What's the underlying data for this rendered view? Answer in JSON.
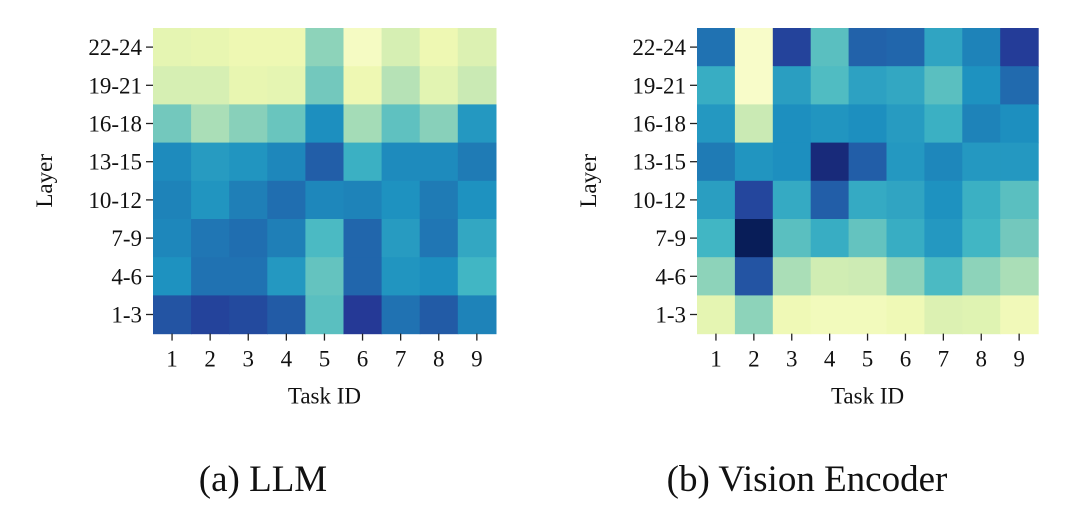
{
  "palette": [
    "#ffffd9",
    "#edf8b1",
    "#c7e9b4",
    "#7fcdbb",
    "#41b6c4",
    "#1d91c0",
    "#225ea8",
    "#253494",
    "#081d58"
  ],
  "chart_data": [
    {
      "type": "heatmap",
      "caption": "(a) LLM",
      "xlabel": "Task ID",
      "ylabel": "Layer",
      "x_categories": [
        "1",
        "2",
        "3",
        "4",
        "5",
        "6",
        "7",
        "8",
        "9"
      ],
      "y_categories": [
        "22-24",
        "19-21",
        "16-18",
        "13-15",
        "10-12",
        "7-9",
        "4-6",
        "1-3"
      ],
      "value_range": [
        0,
        1
      ],
      "values": [
        [
          0.15,
          0.14,
          0.12,
          0.12,
          0.35,
          0.07,
          0.2,
          0.12,
          0.18
        ],
        [
          0.2,
          0.2,
          0.14,
          0.15,
          0.4,
          0.12,
          0.28,
          0.16,
          0.24
        ],
        [
          0.4,
          0.3,
          0.36,
          0.42,
          0.63,
          0.31,
          0.44,
          0.36,
          0.6
        ],
        [
          0.64,
          0.59,
          0.61,
          0.65,
          0.75,
          0.52,
          0.64,
          0.64,
          0.68
        ],
        [
          0.66,
          0.61,
          0.67,
          0.71,
          0.65,
          0.66,
          0.62,
          0.68,
          0.62
        ],
        [
          0.65,
          0.69,
          0.71,
          0.67,
          0.48,
          0.73,
          0.59,
          0.69,
          0.55
        ],
        [
          0.62,
          0.7,
          0.7,
          0.6,
          0.43,
          0.73,
          0.61,
          0.63,
          0.5
        ],
        [
          0.78,
          0.83,
          0.81,
          0.76,
          0.45,
          0.86,
          0.7,
          0.76,
          0.66
        ]
      ]
    },
    {
      "type": "heatmap",
      "caption": "(b) Vision Encoder",
      "xlabel": "Task ID",
      "ylabel": "Layer",
      "x_categories": [
        "1",
        "2",
        "3",
        "4",
        "5",
        "6",
        "7",
        "8",
        "9"
      ],
      "y_categories": [
        "22-24",
        "19-21",
        "16-18",
        "13-15",
        "10-12",
        "7-9",
        "4-6",
        "1-3"
      ],
      "value_range": [
        0,
        1
      ],
      "values": [
        [
          0.7,
          0.05,
          0.83,
          0.45,
          0.74,
          0.73,
          0.56,
          0.66,
          0.85
        ],
        [
          0.53,
          0.05,
          0.58,
          0.47,
          0.57,
          0.55,
          0.45,
          0.62,
          0.72
        ],
        [
          0.6,
          0.24,
          0.63,
          0.61,
          0.63,
          0.59,
          0.52,
          0.66,
          0.63
        ],
        [
          0.68,
          0.61,
          0.63,
          0.93,
          0.75,
          0.6,
          0.65,
          0.6,
          0.6
        ],
        [
          0.58,
          0.82,
          0.54,
          0.75,
          0.54,
          0.56,
          0.62,
          0.52,
          0.45
        ],
        [
          0.5,
          1.0,
          0.45,
          0.53,
          0.43,
          0.53,
          0.6,
          0.5,
          0.4
        ],
        [
          0.35,
          0.78,
          0.3,
          0.22,
          0.23,
          0.35,
          0.48,
          0.35,
          0.3
        ],
        [
          0.15,
          0.35,
          0.11,
          0.09,
          0.09,
          0.11,
          0.18,
          0.17,
          0.1
        ]
      ]
    }
  ]
}
